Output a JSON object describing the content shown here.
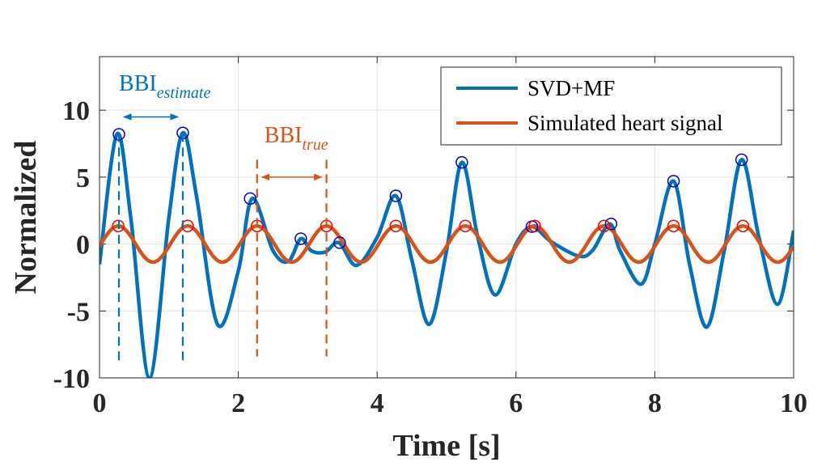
{
  "chart_data": {
    "type": "line",
    "xlabel": "Time [s]",
    "ylabel": "Normalized",
    "xlim": [
      0,
      10
    ],
    "ylim": [
      -10,
      14
    ],
    "xticks": [
      0,
      2,
      4,
      6,
      8,
      10
    ],
    "yticks": [
      -10,
      -5,
      0,
      5,
      10
    ],
    "xtick_labels": [
      "0",
      "2",
      "4",
      "6",
      "8",
      "10"
    ],
    "ytick_labels": [
      "-10",
      "-5",
      "0",
      "5",
      "10"
    ],
    "grid": true,
    "legend_position": "top-right",
    "series": [
      {
        "name": "SVD+MF",
        "color": "#0072BD",
        "x": [
          0,
          0.25,
          0.45,
          0.72,
          1.0,
          1.2,
          1.4,
          1.7,
          2.0,
          2.2,
          2.5,
          2.72,
          2.9,
          3.05,
          3.25,
          3.45,
          3.7,
          4.0,
          4.27,
          4.5,
          4.75,
          5.0,
          5.22,
          5.45,
          5.7,
          6.0,
          6.23,
          6.5,
          6.9,
          7.1,
          7.35,
          7.5,
          7.8,
          8.0,
          8.27,
          8.5,
          8.75,
          9.0,
          9.25,
          9.5,
          9.77,
          10.0
        ],
        "y": [
          -1.5,
          8.2,
          2.0,
          -10.0,
          2.0,
          8.3,
          3.5,
          -6.0,
          -2.0,
          3.4,
          -0.5,
          -1.3,
          0.4,
          -0.5,
          -0.6,
          0.1,
          -1.6,
          0.5,
          3.6,
          -1.2,
          -6.0,
          -0.5,
          6.1,
          0.5,
          -3.8,
          0.0,
          1.3,
          0.2,
          -0.9,
          -0.5,
          1.5,
          -0.5,
          -3.0,
          0.0,
          4.7,
          -1.5,
          -6.2,
          -0.5,
          6.3,
          0.5,
          -4.5,
          1.0
        ]
      },
      {
        "name": "Simulated heart signal",
        "color": "#D95319",
        "amplitude": 1.35,
        "period": 1.0,
        "phase_offset": 0.27
      }
    ],
    "peaks_svdmf": {
      "color": "#0000CC",
      "x": [
        0.28,
        1.2,
        2.17,
        2.9,
        3.46,
        4.27,
        5.22,
        6.23,
        7.37,
        8.27,
        9.25
      ],
      "y": [
        8.2,
        8.3,
        3.4,
        0.4,
        0.1,
        3.6,
        6.1,
        1.3,
        1.5,
        4.7,
        6.3
      ]
    },
    "peaks_heart": {
      "color": "#FF0000",
      "x": [
        0.27,
        1.27,
        2.27,
        3.27,
        4.27,
        5.27,
        6.27,
        7.27,
        8.27,
        9.27
      ],
      "y": [
        1.35,
        1.35,
        1.35,
        1.35,
        1.35,
        1.35,
        1.35,
        1.35,
        1.35,
        1.35
      ]
    },
    "annotations": [
      {
        "label_main": "BBI",
        "label_sub": "estimate",
        "color": "#0072BD",
        "x_start": 0.28,
        "x_end": 1.2,
        "arrow_y": 9.5,
        "line_y_top": 8.3,
        "line_y_bottom": -8.8
      },
      {
        "label_main": "BBI",
        "label_sub": "true",
        "color": "#D95319",
        "x_start": 2.27,
        "x_end": 3.27,
        "arrow_y": 5.0,
        "line_y_top": 6.3,
        "line_y_bottom": -8.4
      }
    ]
  }
}
